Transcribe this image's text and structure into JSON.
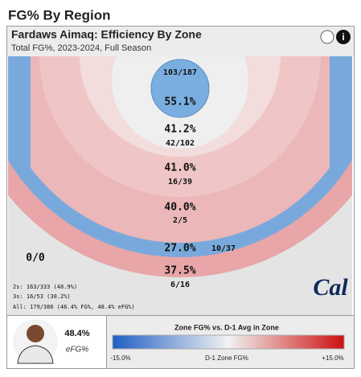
{
  "title": "FG% By Region",
  "card": {
    "title": "Fardaws Aimaq: Efficiency By Zone",
    "subtitle": "Total FG%, 2023-2024, Full Season"
  },
  "zones": [
    {
      "pct": "55.1%",
      "made": "103/187"
    },
    {
      "pct": "41.2%",
      "made": "42/102"
    },
    {
      "pct": "41.0%",
      "made": "16/39"
    },
    {
      "pct": "40.0%",
      "made": "2/5"
    },
    {
      "pct": "27.0%",
      "made": "10/37"
    },
    {
      "pct": "37.5%",
      "made": "6/16"
    },
    {
      "made": "0/0"
    }
  ],
  "stats": [
    "2s: 163/333 (48.9%)",
    "3s: 16/53 (30.2%)",
    "All: 179/386 (46.4% FG%, 48.4% eFG%)"
  ],
  "logo": "Cal",
  "player": {
    "value": "48.4%",
    "label": "eFG%"
  },
  "legend": {
    "title": "Zone FG% vs. D-1 Avg in Zone",
    "min": "-15.0%",
    "center": "D-1 Zone FG%",
    "max": "+15.0%"
  }
}
